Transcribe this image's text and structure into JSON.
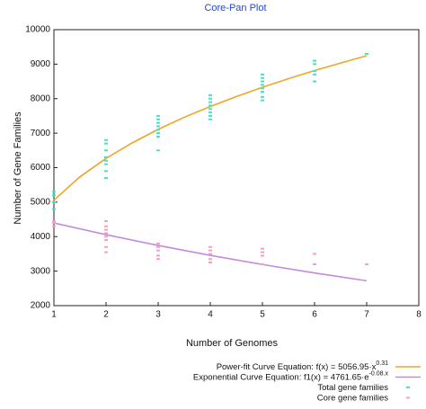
{
  "chart_data": {
    "type": "scatter",
    "title": "Core-Pan Plot",
    "x_label": "Number of Genomes",
    "y_label": "Number of Gene Families",
    "xlim": [
      1,
      8
    ],
    "xticks": [
      1,
      2,
      3,
      4,
      5,
      6,
      7,
      8
    ],
    "ylim": [
      2000,
      10000
    ],
    "yticks": [
      2000,
      3000,
      4000,
      5000,
      6000,
      7000,
      8000,
      9000,
      10000
    ],
    "series": [
      {
        "name": "Power-fit Curve Equation: f(x) = 5056.95·x",
        "name_sup": "0.31",
        "mode": "line",
        "color": "#f0a428",
        "x": [
          1,
          1.5,
          2,
          2.5,
          3,
          3.5,
          4,
          4.5,
          5,
          5.5,
          6,
          6.5,
          7
        ],
        "values": [
          5057,
          5735,
          6269,
          6717,
          7111,
          7461,
          7772,
          8061,
          8329,
          8581,
          8815,
          9033,
          9245
        ]
      },
      {
        "name": "Exponential Curve Equation: f1(x) = 4761.65·e",
        "name_sup": "-0.08.x",
        "mode": "line",
        "color": "#c48ae0",
        "x": [
          1,
          2,
          3,
          4,
          5,
          6,
          7
        ],
        "values": [
          4396,
          4057,
          3745,
          3457,
          3192,
          2946,
          2720
        ]
      },
      {
        "name": "Total gene families",
        "mode": "markers",
        "color": "#48e0c8",
        "x": [
          1,
          1,
          1,
          1,
          2,
          2,
          2,
          2,
          2,
          2,
          2,
          2,
          3,
          3,
          3,
          3,
          3,
          3,
          3,
          3,
          4,
          4,
          4,
          4,
          4,
          4,
          4,
          4,
          5,
          5,
          5,
          5,
          5,
          5,
          5,
          5,
          6,
          6,
          6,
          6,
          6,
          7
        ],
        "values": [
          5000,
          5200,
          4800,
          5300,
          5700,
          5900,
          6100,
          6200,
          6300,
          6500,
          6700,
          6800,
          6500,
          6900,
          7000,
          7100,
          7200,
          7300,
          7400,
          7500,
          7400,
          7500,
          7600,
          7700,
          7800,
          7900,
          8000,
          8100,
          7950,
          8050,
          8200,
          8300,
          8400,
          8500,
          8600,
          8700,
          8500,
          8700,
          8800,
          9000,
          9100,
          9300
        ]
      },
      {
        "name": "Core gene families",
        "mode": "markers",
        "color": "#f4a0c4",
        "x": [
          1,
          1,
          1,
          2,
          2,
          2,
          2,
          2,
          2,
          2,
          2,
          3,
          3,
          3,
          3,
          3,
          4,
          4,
          4,
          4,
          4,
          5,
          5,
          5,
          5,
          6,
          6,
          7
        ],
        "values": [
          4400,
          4450,
          4300,
          3550,
          3700,
          3900,
          4000,
          4100,
          4200,
          4300,
          4450,
          3350,
          3450,
          3600,
          3700,
          3800,
          3250,
          3350,
          3500,
          3600,
          3700,
          3200,
          3450,
          3550,
          3650,
          3200,
          3500,
          3200
        ]
      }
    ]
  }
}
